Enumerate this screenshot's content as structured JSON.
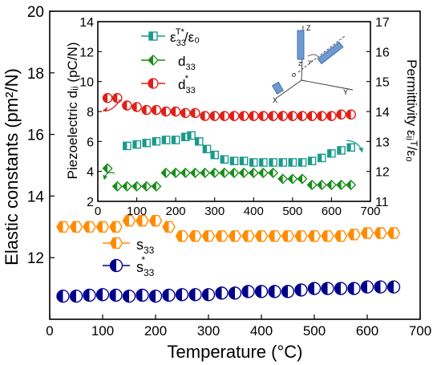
{
  "chart_data": [
    {
      "type": "scatter",
      "panel": "main",
      "xlabel": "Temperature (°C)",
      "ylabel": "Elastic  constants  (pm²/N)",
      "xlim": [
        0,
        700
      ],
      "ylim": [
        10,
        20
      ],
      "x_ticks": [
        0,
        100,
        200,
        300,
        400,
        500,
        600,
        700
      ],
      "y_ticks": [
        12,
        14,
        16,
        18,
        20
      ],
      "legend_position": "left-middle",
      "series": [
        {
          "name": "s33",
          "label_main": "s",
          "label_sub": "33",
          "label_sup": "",
          "color": "#ff8c00",
          "marker": "hexagon-half",
          "x": [
            25,
            50,
            75,
            100,
            125,
            150,
            175,
            200,
            225,
            250,
            275,
            300,
            325,
            350,
            375,
            400,
            425,
            450,
            475,
            500,
            525,
            550,
            575,
            600,
            625,
            650
          ],
          "y": [
            13.0,
            13.0,
            13.0,
            13.0,
            13.0,
            13.2,
            13.2,
            13.2,
            13.0,
            12.7,
            12.7,
            12.7,
            12.7,
            12.7,
            12.7,
            12.7,
            12.7,
            12.7,
            12.7,
            12.7,
            12.7,
            12.7,
            12.75,
            12.8,
            12.8,
            12.8
          ]
        },
        {
          "name": "s*33",
          "label_main": "s",
          "label_sub": "33",
          "label_sup": "*",
          "color": "#00008b",
          "marker": "circle-half",
          "x": [
            25,
            50,
            75,
            100,
            125,
            150,
            175,
            200,
            225,
            250,
            275,
            300,
            325,
            350,
            375,
            400,
            425,
            450,
            475,
            500,
            525,
            550,
            575,
            600,
            625,
            650
          ],
          "y": [
            10.75,
            10.75,
            10.78,
            10.8,
            10.78,
            10.75,
            10.78,
            10.75,
            10.78,
            10.8,
            10.8,
            10.8,
            10.85,
            10.85,
            10.9,
            10.9,
            10.9,
            10.9,
            10.95,
            11.0,
            11.0,
            11.0,
            11.0,
            11.05,
            11.05,
            11.05
          ]
        }
      ]
    },
    {
      "type": "scatter",
      "panel": "inset",
      "xlabel": "",
      "ylabel": "Piezoelectric dᵢⱼ (pC/N)",
      "y2label": "Permittivity εᵢⱼᵀ/ε₀",
      "xlim": [
        0,
        700
      ],
      "ylim": [
        2,
        14
      ],
      "y2lim": [
        11,
        17
      ],
      "x_ticks": [
        0,
        100,
        200,
        300,
        400,
        500,
        600,
        700
      ],
      "y_ticks": [
        2,
        4,
        6,
        8,
        10,
        12,
        14
      ],
      "y2_ticks": [
        11,
        12,
        13,
        14,
        15,
        16,
        17
      ],
      "legend_position": "top-left",
      "series": [
        {
          "name": "εT*33/ε0",
          "label_main": "ε",
          "label_sub": "33",
          "label_sup": "T*",
          "label_tail": "/ε₀",
          "axis": "right",
          "color": "#1a9a8a",
          "marker": "square-half",
          "x": [
            75,
            100,
            125,
            150,
            175,
            200,
            225,
            240,
            260,
            280,
            300,
            325,
            350,
            375,
            400,
            425,
            450,
            475,
            500,
            525,
            550,
            575,
            600,
            625,
            650
          ],
          "y": [
            12.85,
            12.9,
            12.95,
            13.0,
            13.05,
            13.05,
            13.15,
            13.2,
            13.0,
            12.75,
            12.55,
            12.4,
            12.35,
            12.35,
            12.3,
            12.3,
            12.3,
            12.3,
            12.3,
            12.3,
            12.35,
            12.45,
            12.6,
            12.7,
            12.8
          ]
        },
        {
          "name": "d33",
          "label_main": "d",
          "label_sub": "33",
          "label_sup": "",
          "label_tail": "",
          "axis": "left",
          "color": "#1a8c1a",
          "marker": "diamond-half",
          "x": [
            25,
            50,
            75,
            100,
            125,
            150,
            175,
            200,
            225,
            250,
            275,
            300,
            325,
            350,
            375,
            400,
            425,
            450,
            475,
            500,
            525,
            550,
            575,
            600,
            625,
            650
          ],
          "y": [
            4.2,
            3.0,
            3.0,
            3.0,
            3.0,
            3.0,
            3.9,
            3.9,
            3.9,
            3.9,
            3.9,
            3.9,
            3.9,
            3.9,
            3.9,
            3.9,
            3.9,
            3.9,
            3.5,
            3.5,
            3.5,
            3.1,
            3.1,
            3.1,
            3.1,
            3.1
          ]
        },
        {
          "name": "d*33",
          "label_main": "d",
          "label_sub": "33",
          "label_sup": "*",
          "label_tail": "",
          "axis": "left",
          "color": "#e0201a",
          "marker": "circle-half-v",
          "x": [
            25,
            50,
            75,
            100,
            125,
            150,
            175,
            200,
            225,
            250,
            275,
            300,
            325,
            350,
            375,
            400,
            425,
            450,
            475,
            500,
            525,
            550,
            575,
            600,
            625,
            650
          ],
          "y": [
            8.9,
            8.9,
            8.4,
            8.3,
            8.1,
            8.1,
            8.0,
            8.0,
            7.9,
            7.9,
            7.7,
            7.7,
            7.7,
            7.7,
            7.7,
            7.7,
            7.7,
            7.7,
            7.7,
            7.7,
            7.7,
            7.7,
            7.7,
            7.7,
            7.8,
            7.8
          ]
        }
      ],
      "inset_schematic": {
        "axis_labels": [
          "Z",
          "X",
          "Y",
          "o"
        ],
        "small_labels": [
          "Z'",
          "Y'"
        ]
      }
    }
  ],
  "colors": {
    "axes": "#000000",
    "background": "#ffffff",
    "arrow_red": "#e0201a",
    "arrow_green": "#1a8c1a",
    "arrow_teal": "#1a9a8a",
    "crystal": "#6b9bd1"
  }
}
